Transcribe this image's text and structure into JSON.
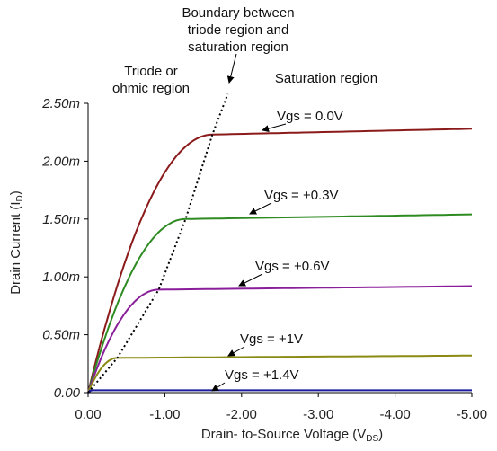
{
  "chart_data": {
    "type": "line",
    "title": "",
    "xlabel": "Drain- to-Source Voltage (V",
    "xlabel_sub": "DS",
    "xlabel_end": ")",
    "ylabel": "Drain Current (I",
    "ylabel_sub": "D",
    "ylabel_end": ")",
    "xlim": [
      0,
      -5
    ],
    "ylim": [
      0,
      0.0025
    ],
    "x_ticks": [
      0,
      -1,
      -2,
      -3,
      -4,
      -5
    ],
    "x_tick_labels": [
      "0.00",
      "-1.00",
      "-2.00",
      "-3.00",
      "-4.00",
      "-5.00"
    ],
    "y_ticks": [
      0,
      0.0005,
      0.001,
      0.0015,
      0.002,
      0.0025
    ],
    "y_tick_labels": [
      "0.00",
      "0.50m",
      "1.00m",
      "1.50m",
      "2.00m",
      "2.50m"
    ],
    "grid": false,
    "series": [
      {
        "name": "Vgs = 0.0V",
        "color": "#8b1a1a",
        "vsat": -1.62,
        "isat": 0.00223,
        "iend": 0.00228
      },
      {
        "name": "Vgs = +0.3V",
        "color": "#2e8b22",
        "vsat": -1.27,
        "isat": 0.0015,
        "iend": 0.00154
      },
      {
        "name": "Vgs = +0.6V",
        "color": "#8a1e9a",
        "vsat": -0.92,
        "isat": 0.00089,
        "iend": 0.00092
      },
      {
        "name": "Vgs = +1V",
        "color": "#8a8a14",
        "vsat": -0.38,
        "isat": 0.0003,
        "iend": 0.00032
      },
      {
        "name": "Vgs = +1.4V",
        "color": "#1a1a9a",
        "vsat": -0.05,
        "isat": 2e-05,
        "iend": 2e-05
      }
    ],
    "boundary": {
      "style": "dotted",
      "x": [
        0,
        -0.38,
        -0.92,
        -1.27,
        -1.62,
        -1.82
      ],
      "y": [
        0,
        0.0003,
        0.00089,
        0.0015,
        0.00223,
        0.00258
      ]
    },
    "annotations": [
      {
        "text": "Boundary between"
      },
      {
        "text": "triode region and"
      },
      {
        "text": "saturation region"
      },
      {
        "text": "Triode or"
      },
      {
        "text": "ohmic region"
      },
      {
        "text": "Saturation region"
      }
    ]
  }
}
